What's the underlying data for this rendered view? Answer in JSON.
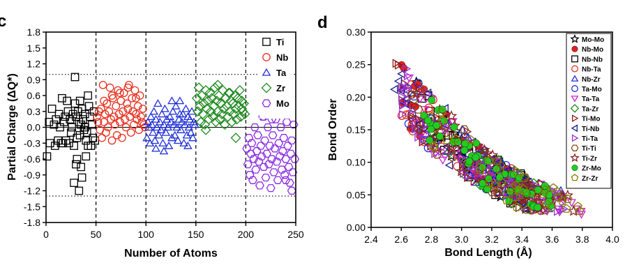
{
  "chart_data": [
    {
      "panel": "c",
      "type": "scatter",
      "xlabel": "Number of Atoms",
      "ylabel": "Partial Charge (ΔQ*)",
      "xlim": [
        0,
        250
      ],
      "ylim": [
        -1.8,
        1.8
      ],
      "xticks": [
        "0",
        "50",
        "100",
        "150",
        "200",
        "250"
      ],
      "yticks": [
        "-1.8",
        "-1.5",
        "-1.2",
        "-0.9",
        "-0.6",
        "-0.3",
        "0.0",
        "0.3",
        "0.6",
        "0.9",
        "1.2",
        "1.5",
        "1.8"
      ],
      "reference_lines": {
        "vertical_dashed_x": [
          50,
          100,
          150,
          200
        ],
        "horizontal_dotted_y": [
          1.0,
          -1.3
        ],
        "horizontal_solid_y": [
          0.0
        ]
      },
      "legend_position": "top-right",
      "series": [
        {
          "name": "Ti",
          "marker": "square",
          "color": "#000000",
          "x": [
            1,
            3,
            4,
            6,
            8,
            9,
            10,
            12,
            13,
            14,
            15,
            16,
            17,
            18,
            19,
            20,
            21,
            22,
            23,
            24,
            25,
            26,
            27,
            28,
            29,
            30,
            31,
            32,
            33,
            34,
            35,
            36,
            37,
            38,
            39,
            40,
            41,
            42,
            43,
            44,
            45,
            46,
            47,
            48,
            49,
            29,
            33,
            28,
            31,
            36,
            30,
            35,
            40,
            42,
            34,
            39
          ],
          "y": [
            -0.55,
            0.1,
            -0.3,
            0.35,
            0.05,
            -0.35,
            0.15,
            -0.25,
            0.25,
            0.0,
            -0.3,
            0.55,
            -0.3,
            0.1,
            0.2,
            -0.25,
            0.5,
            0.3,
            -0.3,
            0.15,
            -0.1,
            0.0,
            0.25,
            -0.35,
            0.45,
            0.2,
            -0.2,
            0.3,
            0.1,
            -0.15,
            0.05,
            0.35,
            0.15,
            -0.05,
            0.25,
            -0.25,
            -0.1,
            0.6,
            0.4,
            0.2,
            -0.35,
            0.05,
            -0.2,
            0.3,
            -0.25,
            0.95,
            -1.2,
            -1.05,
            -0.6,
            -0.95,
            -0.7,
            -0.75,
            -0.55,
            -0.35,
            0.5,
            0.0
          ]
        },
        {
          "name": "Nb",
          "marker": "circle",
          "color": "#e8301e",
          "x": [
            51,
            52,
            53,
            54,
            55,
            56,
            57,
            58,
            59,
            60,
            61,
            62,
            63,
            64,
            65,
            66,
            67,
            68,
            69,
            70,
            71,
            72,
            73,
            74,
            75,
            76,
            77,
            78,
            79,
            80,
            81,
            82,
            83,
            84,
            85,
            86,
            87,
            88,
            89,
            90,
            91,
            92,
            93,
            94,
            95,
            96,
            97,
            98,
            99,
            58,
            66,
            74,
            82,
            90
          ],
          "y": [
            0.2,
            0.1,
            0.3,
            -0.05,
            0.35,
            -0.2,
            0.8,
            0.1,
            0.25,
            -0.1,
            0.45,
            0.0,
            0.3,
            0.75,
            0.15,
            -0.25,
            0.55,
            0.2,
            0.05,
            0.4,
            -0.15,
            0.7,
            0.25,
            0.1,
            0.5,
            -0.2,
            0.3,
            0.65,
            0.15,
            0.0,
            0.45,
            0.35,
            0.8,
            0.2,
            -0.1,
            0.55,
            0.3,
            0.05,
            0.7,
            0.25,
            0.15,
            0.4,
            -0.05,
            0.6,
            0.2,
            0.1,
            0.35,
            0.05,
            0.0,
            0.5,
            0.6,
            0.65,
            0.75,
            0.55
          ]
        },
        {
          "name": "Ta",
          "marker": "triangle",
          "color": "#1f2fd8",
          "x": [
            101,
            102,
            103,
            104,
            105,
            106,
            107,
            108,
            109,
            110,
            111,
            112,
            113,
            114,
            115,
            116,
            117,
            118,
            119,
            120,
            121,
            122,
            123,
            124,
            125,
            126,
            127,
            128,
            129,
            130,
            131,
            132,
            133,
            134,
            135,
            136,
            137,
            138,
            139,
            140,
            141,
            142,
            143,
            144,
            145,
            146,
            147,
            148,
            149,
            110,
            118,
            126,
            134,
            142
          ],
          "y": [
            -0.2,
            0.1,
            0.0,
            -0.3,
            0.2,
            0.05,
            -0.1,
            0.3,
            -0.25,
            0.15,
            0.0,
            0.45,
            -0.15,
            0.1,
            -0.05,
            0.25,
            -0.3,
            0.05,
            0.35,
            -0.1,
            0.15,
            0.0,
            -0.35,
            0.2,
            0.1,
            -0.2,
            0.3,
            0.05,
            -0.15,
            0.4,
            0.0,
            -0.25,
            0.15,
            0.5,
            -0.05,
            0.1,
            0.25,
            -0.3,
            0.05,
            0.35,
            -0.15,
            0.2,
            0.0,
            0.15,
            -0.1,
            0.3,
            -0.2,
            0.1,
            0.05,
            -0.4,
            -0.45,
            0.5,
            0.25,
            -0.35
          ]
        },
        {
          "name": "Zr",
          "marker": "diamond",
          "color": "#1f8a1f",
          "x": [
            151,
            152,
            153,
            154,
            155,
            156,
            157,
            158,
            159,
            160,
            161,
            162,
            163,
            164,
            165,
            166,
            167,
            168,
            169,
            170,
            171,
            172,
            173,
            174,
            175,
            176,
            177,
            178,
            179,
            180,
            181,
            182,
            183,
            184,
            185,
            186,
            187,
            188,
            189,
            190,
            191,
            192,
            193,
            194,
            195,
            196,
            197,
            198,
            199,
            160,
            172,
            184,
            190,
            196
          ],
          "y": [
            0.55,
            0.3,
            0.75,
            0.4,
            0.1,
            0.6,
            0.25,
            0.45,
            0.05,
            0.7,
            0.35,
            0.5,
            0.15,
            0.65,
            0.3,
            0.55,
            0.2,
            0.4,
            0.75,
            0.1,
            0.5,
            0.3,
            0.6,
            0.15,
            0.45,
            0.25,
            0.7,
            0.35,
            0.05,
            0.55,
            0.4,
            0.2,
            0.65,
            0.3,
            0.5,
            0.1,
            0.45,
            0.25,
            0.6,
            0.35,
            0.15,
            0.55,
            0.4,
            0.7,
            0.2,
            0.5,
            0.3,
            0.45,
            0.25,
            -0.05,
            0.8,
            0.65,
            -0.2,
            0.35
          ]
        },
        {
          "name": "Mo",
          "marker": "hexagon",
          "color": "#8a2be2",
          "x": [
            201,
            202,
            203,
            204,
            205,
            206,
            207,
            208,
            209,
            210,
            211,
            212,
            213,
            214,
            215,
            216,
            217,
            218,
            219,
            220,
            221,
            222,
            223,
            224,
            225,
            226,
            227,
            228,
            229,
            230,
            231,
            232,
            233,
            234,
            235,
            236,
            237,
            238,
            239,
            240,
            241,
            242,
            243,
            244,
            245,
            246,
            247,
            248,
            249,
            218,
            226,
            232,
            240,
            246
          ],
          "y": [
            -0.4,
            -0.7,
            -0.2,
            -0.9,
            -0.5,
            -0.3,
            -1.0,
            -0.6,
            0.0,
            -0.8,
            -0.45,
            -0.15,
            -0.65,
            -1.1,
            -0.35,
            -0.55,
            0.2,
            -0.75,
            -0.25,
            -0.95,
            -0.5,
            0.0,
            -0.7,
            -0.35,
            -1.15,
            -0.6,
            -0.15,
            -0.85,
            -0.4,
            0.15,
            -0.65,
            -1.0,
            -0.3,
            -0.55,
            0.0,
            -0.8,
            -0.45,
            -0.2,
            -0.9,
            -0.6,
            0.1,
            -0.35,
            -0.75,
            -1.05,
            -0.5,
            -0.25,
            -0.85,
            0.05,
            -0.6,
            0.2,
            0.15,
            0.25,
            -1.0,
            -1.2
          ]
        }
      ]
    },
    {
      "panel": "d",
      "type": "scatter",
      "xlabel": "Bond Length (Å)",
      "ylabel": "Bond Order",
      "xlim": [
        2.4,
        4.0
      ],
      "ylim": [
        0.0,
        0.3
      ],
      "xticks": [
        "2.4",
        "2.6",
        "2.8",
        "3.0",
        "3.2",
        "3.4",
        "3.6",
        "3.8",
        "4.0"
      ],
      "yticks": [
        "0.00",
        "0.05",
        "0.10",
        "0.15",
        "0.20",
        "0.25",
        "0.30"
      ],
      "legend_position": "top-right",
      "series": [
        {
          "name": "Mo-Mo",
          "marker": "star",
          "color": "#000000"
        },
        {
          "name": "Nb-Mo",
          "marker": "ball",
          "color": "#e02020"
        },
        {
          "name": "Nb-Nb",
          "marker": "square",
          "color": "#000000"
        },
        {
          "name": "Nb-Ta",
          "marker": "circle",
          "color": "#e8301e"
        },
        {
          "name": "Nb-Zr",
          "marker": "triangle",
          "color": "#1f2fd8"
        },
        {
          "name": "Ta-Mo",
          "marker": "circle",
          "color": "#1f2fd8"
        },
        {
          "name": "Ta-Ta",
          "marker": "triangle-down",
          "color": "#d020d0"
        },
        {
          "name": "Ta-Zr",
          "marker": "diamond",
          "color": "#1f8a1f"
        },
        {
          "name": "Ti-Mo",
          "marker": "triangle-right",
          "color": "#8b1a1a"
        },
        {
          "name": "Ti-Nb",
          "marker": "triangle-left",
          "color": "#1a1a8b"
        },
        {
          "name": "Ti-Ta",
          "marker": "triangle-right",
          "color": "#9932cc"
        },
        {
          "name": "Ti-Ti",
          "marker": "hexagon",
          "color": "#8b4513"
        },
        {
          "name": "Ti-Zr",
          "marker": "star",
          "color": "#8b2323"
        },
        {
          "name": "Zr-Mo",
          "marker": "ball",
          "color": "#22cc22"
        },
        {
          "name": "Zr-Zr",
          "marker": "pentagon",
          "color": "#808000"
        }
      ],
      "decay_curve": {
        "points": [
          [
            2.55,
            0.23
          ],
          [
            2.65,
            0.2
          ],
          [
            2.75,
            0.17
          ],
          [
            2.85,
            0.15
          ],
          [
            2.95,
            0.13
          ],
          [
            3.05,
            0.11
          ],
          [
            3.15,
            0.09
          ],
          [
            3.25,
            0.075
          ],
          [
            3.35,
            0.06
          ],
          [
            3.45,
            0.05
          ],
          [
            3.55,
            0.045
          ],
          [
            3.65,
            0.04
          ],
          [
            3.75,
            0.035
          ],
          [
            3.85,
            0.03
          ]
        ],
        "spread": [
          0.04,
          0.045,
          0.045,
          0.045,
          0.04,
          0.035,
          0.03,
          0.03,
          0.028,
          0.025,
          0.02,
          0.018,
          0.015,
          0.012
        ]
      }
    }
  ]
}
